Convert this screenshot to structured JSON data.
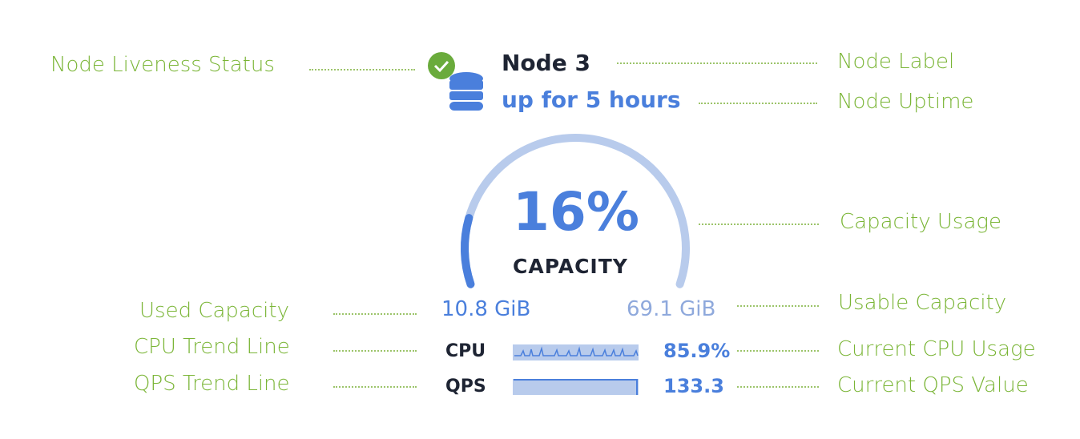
{
  "node": {
    "label": "Node 3",
    "uptime": "up for 5 hours",
    "liveness": "live",
    "icon": "database-icon",
    "status_icon": "check-circle-icon"
  },
  "capacity": {
    "percent_text": "16%",
    "percent": 16,
    "label": "CAPACITY",
    "used": "10.8 GiB",
    "usable": "69.1 GiB"
  },
  "metrics": {
    "cpu_label": "CPU",
    "cpu_value": "85.9%",
    "qps_label": "QPS",
    "qps_value": "133.3"
  },
  "annotations": {
    "liveness": "Node Liveness Status",
    "label": "Node Label",
    "uptime": "Node Uptime",
    "capacity_usage": "Capacity Usage",
    "used_capacity": "Used Capacity",
    "usable_capacity": "Usable Capacity",
    "cpu_trend": "CPU Trend Line",
    "cpu_current": "Current CPU Usage",
    "qps_trend": "QPS Trend Line",
    "qps_current": "Current QPS Value"
  },
  "colors": {
    "annotation": "#7ab536",
    "accent": "#4a7fdc",
    "arc_bg": "#b8cbec",
    "status_ok": "#6aab3c",
    "text_dark": "#1e2433"
  }
}
